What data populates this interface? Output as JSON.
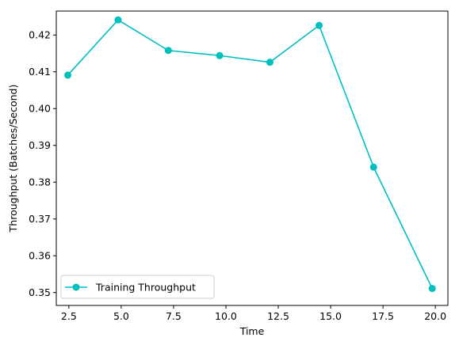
{
  "chart_data": {
    "type": "line",
    "title": "",
    "xlabel": "Time",
    "ylabel": "Throughput (Batches/Second)",
    "xlim": [
      1.9,
      20.6
    ],
    "ylim": [
      0.3465,
      0.4265
    ],
    "xticks": [
      2.5,
      5.0,
      7.5,
      10.0,
      12.5,
      15.0,
      17.5,
      20.0
    ],
    "xtick_labels": [
      "2.5",
      "5.0",
      "7.5",
      "10.0",
      "12.5",
      "15.0",
      "17.5",
      "20.0"
    ],
    "yticks": [
      0.35,
      0.36,
      0.37,
      0.38,
      0.39,
      0.4,
      0.41,
      0.42
    ],
    "ytick_labels": [
      "0.35",
      "0.36",
      "0.37",
      "0.38",
      "0.39",
      "0.40",
      "0.41",
      "0.42"
    ],
    "grid": false,
    "legend_position": "lower-left",
    "series": [
      {
        "name": "Training Throughput",
        "color": "#00BFBF",
        "marker": "circle",
        "x": [
          2.45,
          4.85,
          7.25,
          9.7,
          12.1,
          14.45,
          17.05,
          19.85
        ],
        "y": [
          0.4091,
          0.4241,
          0.4158,
          0.4144,
          0.4126,
          0.4226,
          0.3841,
          0.3511
        ]
      }
    ]
  }
}
